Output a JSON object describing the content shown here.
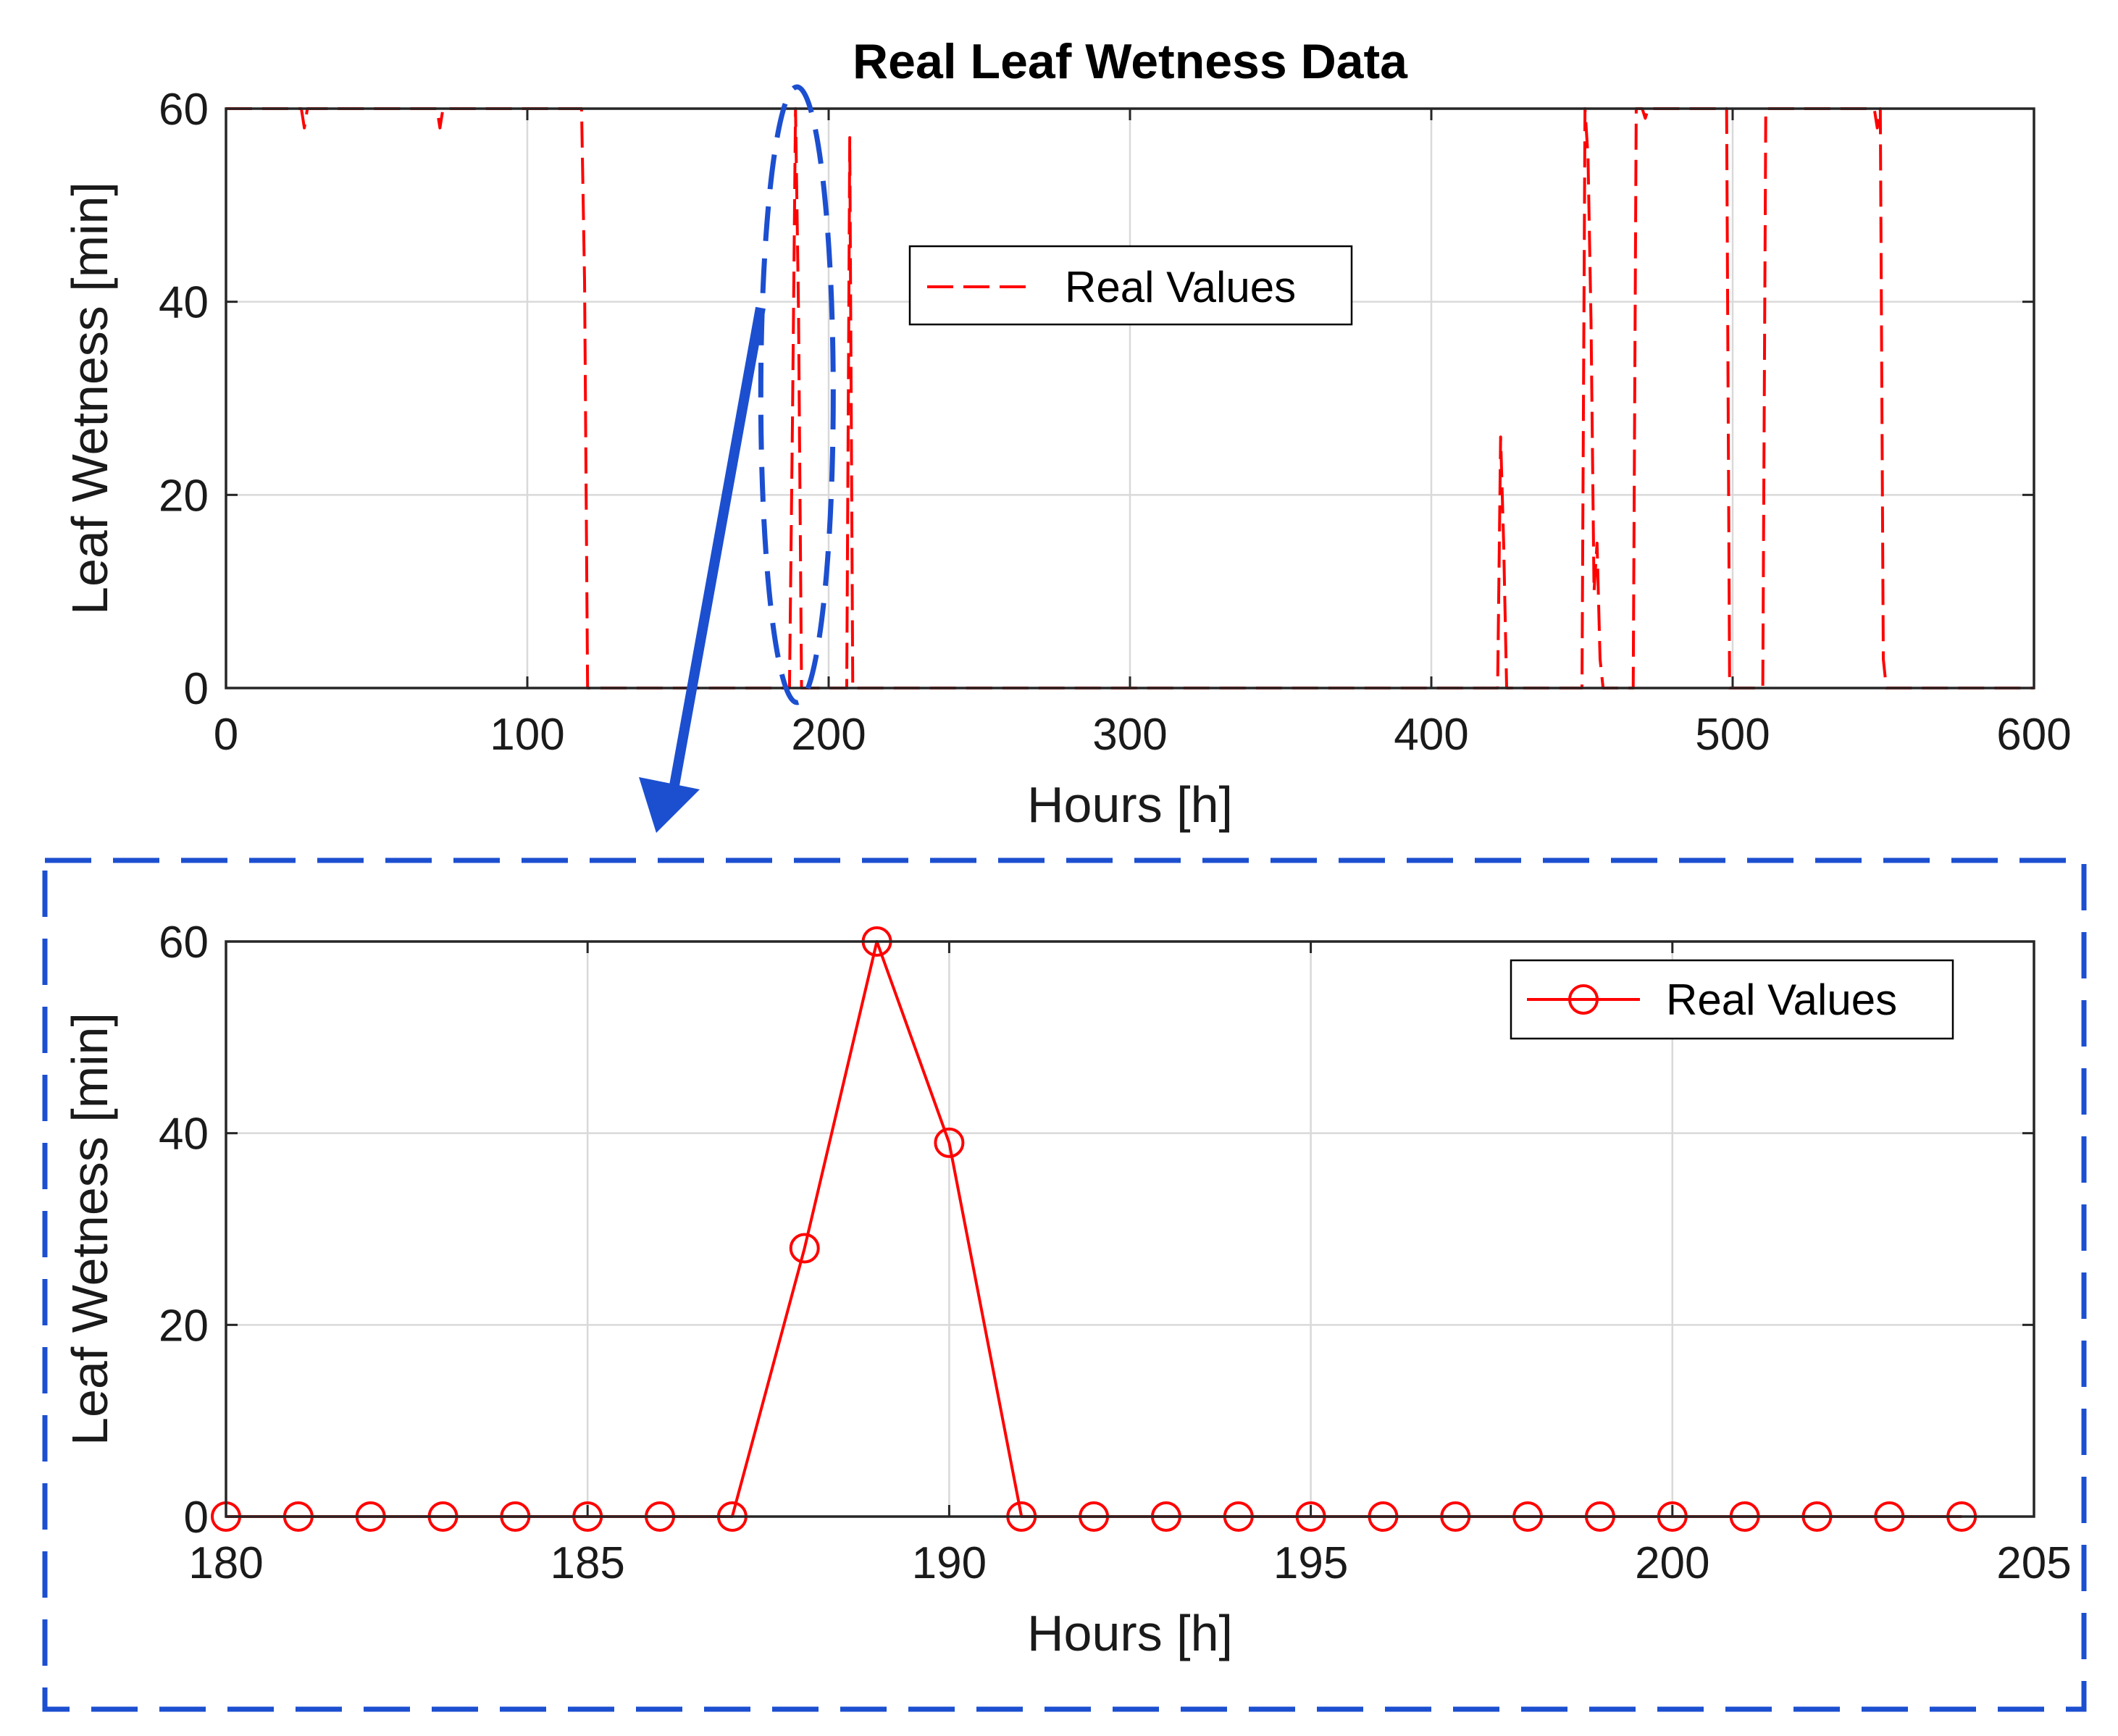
{
  "colors": {
    "series": "#ff0000",
    "annotation": "#1c4fd0",
    "grid": "#d9d9d9",
    "axis": "#262626"
  },
  "chart_data": [
    {
      "id": "top",
      "type": "line",
      "title": "Real Leaf Wetness Data",
      "xlabel": "Hours [h]",
      "ylabel": "Leaf Wetness [min]",
      "xlim": [
        0,
        600
      ],
      "ylim": [
        0,
        60
      ],
      "xticks": [
        0,
        100,
        200,
        300,
        400,
        500,
        600
      ],
      "yticks": [
        0,
        20,
        40,
        60
      ],
      "grid": true,
      "legend_position": "upper-middle",
      "series": [
        {
          "name": "Real Values",
          "style": "dashed",
          "x": [
            0,
            25,
            26,
            27,
            70,
            71,
            72,
            118,
            119,
            120,
            121,
            187,
            188,
            189,
            190,
            191,
            192,
            206,
            207,
            208,
            209,
            422,
            423,
            424,
            425,
            426,
            450,
            451,
            452,
            453,
            454,
            455,
            456,
            457,
            458,
            467,
            468,
            469,
            470,
            471,
            472,
            498,
            499,
            500,
            510,
            511,
            512,
            547,
            548,
            549,
            550,
            551,
            600
          ],
          "y": [
            60,
            60,
            58,
            60,
            60,
            58,
            60,
            60,
            42,
            0,
            0,
            0,
            28,
            60,
            39,
            0,
            0,
            0,
            57,
            0,
            0,
            0,
            26,
            15,
            0,
            0,
            0,
            60,
            55,
            38,
            10,
            15,
            3,
            0,
            0,
            0,
            60,
            60,
            60,
            59,
            60,
            60,
            0,
            0,
            0,
            60,
            60,
            60,
            58,
            60,
            3,
            0,
            0
          ]
        }
      ]
    },
    {
      "id": "zoom",
      "type": "line",
      "xlabel": "Hours [h]",
      "ylabel": "Leaf Wetness [min]",
      "xlim": [
        180,
        205
      ],
      "ylim": [
        0,
        60
      ],
      "xticks": [
        180,
        185,
        190,
        195,
        200,
        205
      ],
      "yticks": [
        0,
        20,
        40,
        60
      ],
      "grid": true,
      "legend_position": "top-right",
      "series": [
        {
          "name": "Real Values",
          "style": "solid-circles",
          "x": [
            180,
            181,
            182,
            183,
            184,
            185,
            186,
            187,
            188,
            189,
            190,
            191,
            192,
            193,
            194,
            195,
            196,
            197,
            198,
            199,
            200,
            201,
            202,
            203,
            204
          ],
          "y": [
            0,
            0,
            0,
            0,
            0,
            0,
            0,
            0,
            28,
            60,
            39,
            0,
            0,
            0,
            0,
            0,
            0,
            0,
            0,
            0,
            0,
            0,
            0,
            0,
            0
          ]
        }
      ]
    }
  ]
}
